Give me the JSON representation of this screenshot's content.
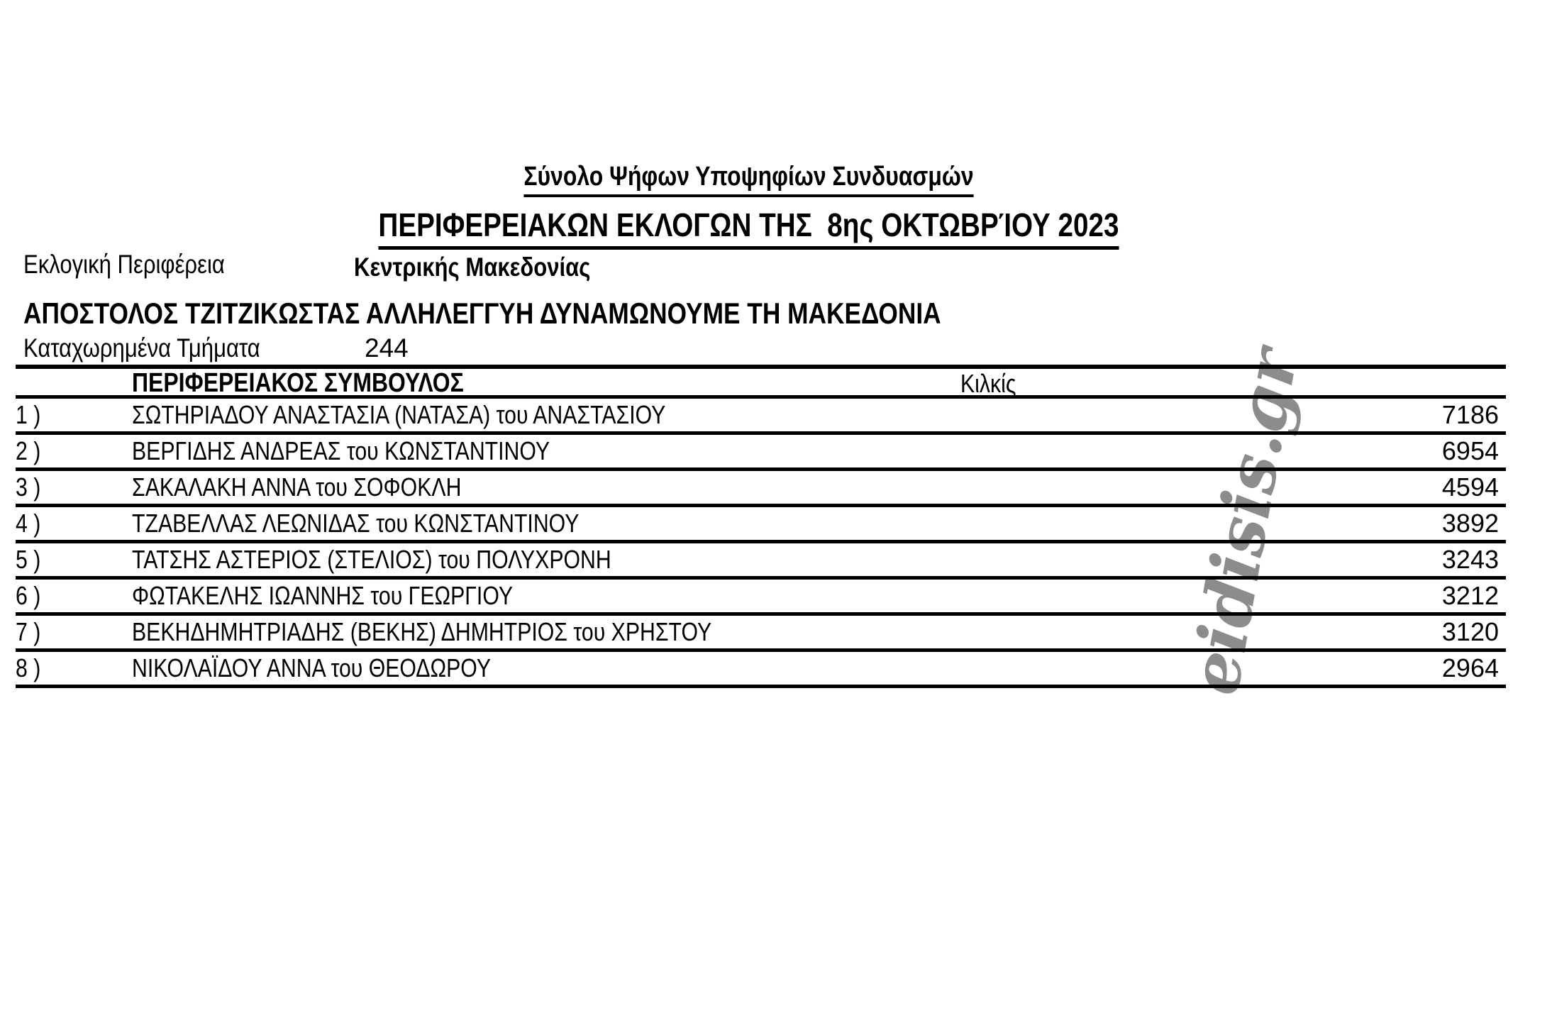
{
  "page": {
    "title": "Σύνολο Ψήφων Υποψηφίων Συνδυασμών",
    "subtitle": "ΠΕΡΙΦΕΡΕΙΑΚΩΝ ΕΚΛΟΓΩΝ ΤΗΣ  8ης ΟΚΤΩΒΡΊΟΥ 2023"
  },
  "fields": {
    "district_label": "Εκλογική Περιφέρεια",
    "district_value": "Κεντρικής Μακεδονίας",
    "party_name": "ΑΠΟΣΤΟΛΟΣ ΤΖΙΤΖΙΚΩΣΤΑΣ ΑΛΛΗΛΕΓΓΥΗ ΔΥΝΑΜΩΝΟΥΜΕ ΤΗ ΜΑΚΕΔΟΝΙΑ",
    "registered_label": "Καταχωρημένα Τμήματα",
    "registered_value": "244"
  },
  "table": {
    "role_header": "ΠΕΡΙΦΕΡΕΙΑΚΟΣ ΣΥΜΒΟΥΛΟΣ",
    "region_header": "Κιλκίς",
    "rows": [
      {
        "num": "1 )",
        "name": "ΣΩΤΗΡΙΑΔΟΥ ΑΝΑΣΤΑΣΙΑ (ΝΑΤΑΣΑ) του ΑΝΑΣΤΑΣΙΟΥ",
        "votes": "7186"
      },
      {
        "num": "2 )",
        "name": "ΒΕΡΓΙΔΗΣ ΑΝΔΡΕΑΣ του ΚΩΝΣΤΑΝΤΙΝΟΥ",
        "votes": "6954"
      },
      {
        "num": "3 )",
        "name": "ΣΑΚΑΛΑΚΗ ΑΝΝΑ του ΣΟΦΟΚΛΗ",
        "votes": "4594"
      },
      {
        "num": "4 )",
        "name": "ΤΖΑΒΕΛΛΑΣ ΛΕΩΝΙΔΑΣ του ΚΩΝΣΤΑΝΤΙΝΟΥ",
        "votes": "3892"
      },
      {
        "num": "5 )",
        "name": "ΤΑΤΣΗΣ ΑΣΤΕΡΙΟΣ (ΣΤΕΛΙΟΣ) του ΠΟΛΥΧΡΟΝΗ",
        "votes": "3243"
      },
      {
        "num": "6 )",
        "name": "ΦΩΤΑΚΕΛΗΣ ΙΩΑΝΝΗΣ του ΓΕΩΡΓΙΟΥ",
        "votes": "3212"
      },
      {
        "num": "7 )",
        "name": "ΒΕΚΗΔΗΜΗΤΡΙΑΔΗΣ (ΒΕΚΗΣ) ΔΗΜΗΤΡΙΟΣ του ΧΡΗΣΤΟΥ",
        "votes": "3120"
      },
      {
        "num": "8 )",
        "name": "ΝΙΚΟΛΑΪΔΟΥ ΑΝΝΑ του ΘΕΟΔΩΡΟΥ",
        "votes": "2964"
      }
    ]
  },
  "watermark": {
    "text": "eidisis.gr",
    "color": "#8c8c8c"
  }
}
